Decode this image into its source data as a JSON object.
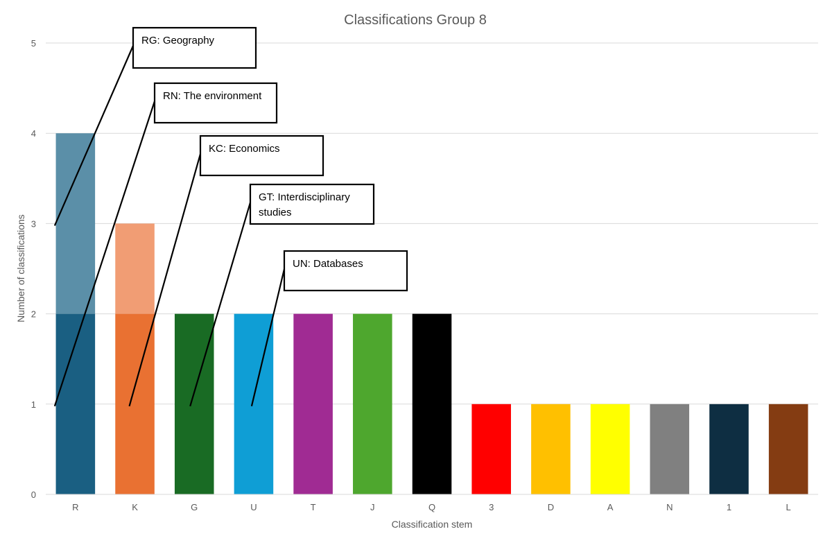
{
  "chart_data": {
    "type": "bar",
    "stacked": true,
    "title": "Classifications Group 8",
    "xlabel": "Classification stem",
    "ylabel": "Number of classifications",
    "ylim": [
      0,
      5
    ],
    "yticks": [
      "0",
      "1",
      "2",
      "3",
      "4",
      "5"
    ],
    "grid": true,
    "categories": [
      "R",
      "K",
      "G",
      "U",
      "T",
      "J",
      "Q",
      "3",
      "D",
      "A",
      "N",
      "1",
      "L"
    ],
    "series": [
      {
        "name": "base",
        "values": [
          2,
          2,
          2,
          2,
          2,
          2,
          2,
          1,
          1,
          1,
          1,
          1,
          1
        ],
        "colors": [
          "#1a5f82",
          "#e97132",
          "#196b24",
          "#0f9ed5",
          "#a02b93",
          "#4ea72e",
          "#000000",
          "#ff0000",
          "#ffc000",
          "#ffff00",
          "#808080",
          "#0e2e42",
          "#843c12"
        ]
      },
      {
        "name": "upper",
        "values": [
          2,
          1,
          0,
          0,
          0,
          0,
          0,
          0,
          0,
          0,
          0,
          0,
          0
        ],
        "colors": [
          "#5b8fa8",
          "#f19d74",
          null,
          null,
          null,
          null,
          null,
          null,
          null,
          null,
          null,
          null,
          null
        ]
      }
    ],
    "annotations": [
      {
        "label": "RG: Geography",
        "category": "R",
        "y": 3
      },
      {
        "label": "RN: The environment",
        "category": "R",
        "y": 1
      },
      {
        "label": "KC: Economics",
        "category": "K",
        "y": 1
      },
      {
        "label": "GT: Interdisciplinary studies",
        "lines": [
          "GT: Interdisciplinary",
          "studies"
        ],
        "category": "G",
        "y": 1
      },
      {
        "label": "UN: Databases",
        "category": "U",
        "y": 1
      }
    ]
  }
}
